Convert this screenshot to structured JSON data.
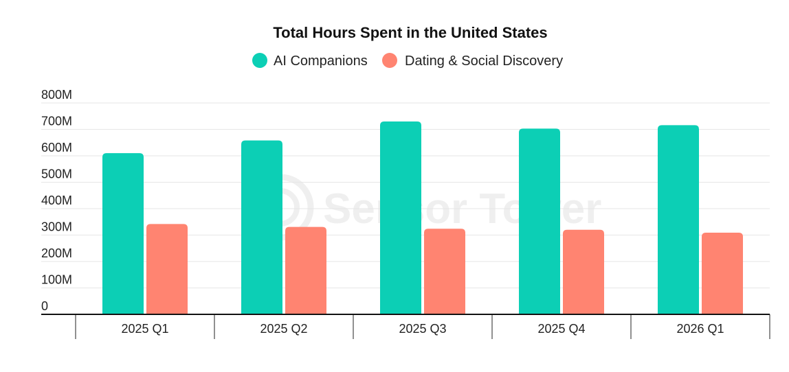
{
  "chart_data": {
    "type": "bar",
    "title": "Total Hours Spent in the United States",
    "categories": [
      "2025 Q1",
      "2025 Q2",
      "2025 Q3",
      "2025 Q4",
      "2026 Q1"
    ],
    "series": [
      {
        "name": "AI Companions",
        "color": "#0ccfb5",
        "values": [
          610,
          658,
          730,
          703,
          716
        ]
      },
      {
        "name": "Dating & Social Discovery",
        "color": "#ff8471",
        "values": [
          342,
          331,
          324,
          320,
          309
        ]
      }
    ],
    "y_ticks": [
      "0",
      "100M",
      "200M",
      "300M",
      "400M",
      "500M",
      "600M",
      "700M",
      "800M"
    ],
    "ylim": [
      0,
      800
    ],
    "unit": "M",
    "grid": true,
    "legend_position": "top-center",
    "watermark": "Sensor Tower"
  }
}
